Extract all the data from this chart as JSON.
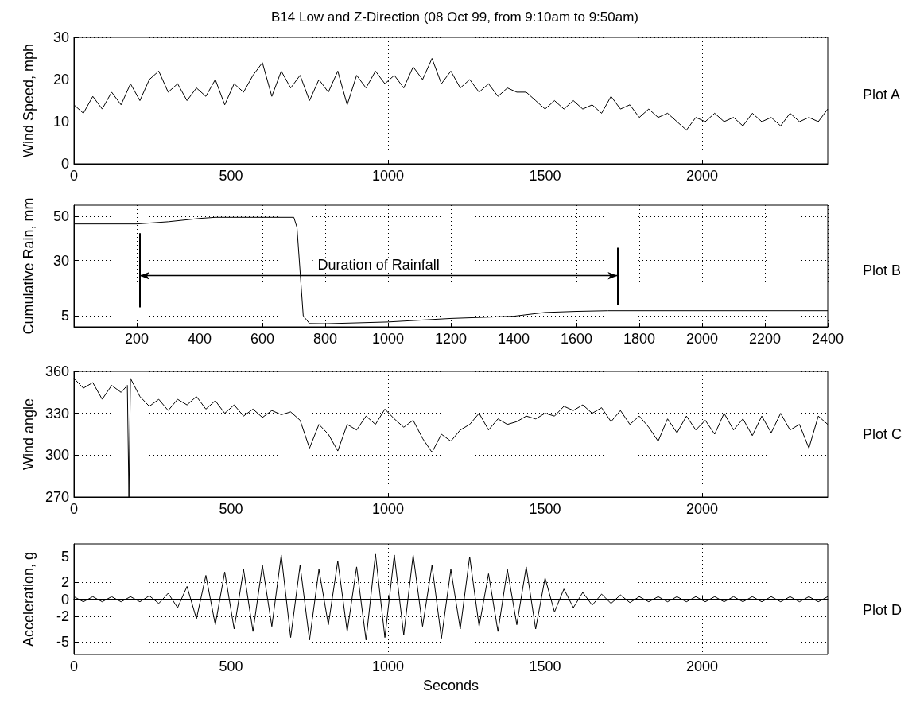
{
  "chart_data": [
    {
      "type": "line",
      "title": "B14 Low and Z-Direction (08 Oct 99, from 9:10am to 9:50am)",
      "annotations": [
        "Plot A"
      ],
      "ylabel": "Wind Speed, mph",
      "xlim": [
        0,
        2400
      ],
      "xticks": [
        0,
        500,
        1000,
        1500,
        2000
      ],
      "ylim": [
        0,
        30
      ],
      "yticks": [
        0,
        10,
        20,
        30
      ],
      "grid": true,
      "x": [
        0,
        30,
        60,
        90,
        120,
        150,
        180,
        210,
        240,
        270,
        300,
        330,
        360,
        390,
        420,
        450,
        480,
        510,
        540,
        570,
        600,
        630,
        660,
        690,
        720,
        750,
        780,
        810,
        840,
        870,
        900,
        930,
        960,
        990,
        1020,
        1050,
        1080,
        1110,
        1140,
        1170,
        1200,
        1230,
        1260,
        1290,
        1320,
        1350,
        1380,
        1410,
        1440,
        1470,
        1500,
        1530,
        1560,
        1590,
        1620,
        1650,
        1680,
        1710,
        1740,
        1770,
        1800,
        1830,
        1860,
        1890,
        1920,
        1950,
        1980,
        2010,
        2040,
        2070,
        2100,
        2130,
        2160,
        2190,
        2220,
        2250,
        2280,
        2310,
        2340,
        2370,
        2400
      ],
      "series": [
        {
          "color": "#000000",
          "values": [
            14,
            12,
            16,
            13,
            17,
            14,
            19,
            15,
            20,
            22,
            17,
            19,
            15,
            18,
            16,
            20,
            14,
            19,
            17,
            21,
            24,
            16,
            22,
            18,
            21,
            15,
            20,
            17,
            22,
            14,
            21,
            18,
            22,
            19,
            21,
            18,
            23,
            20,
            25,
            19,
            22,
            18,
            20,
            17,
            19,
            16,
            18,
            17,
            17,
            15,
            13,
            15,
            13,
            15,
            13,
            14,
            12,
            16,
            13,
            14,
            11,
            13,
            11,
            12,
            10,
            8,
            11,
            10,
            12,
            10,
            11,
            9,
            12,
            10,
            11,
            9,
            12,
            10,
            11,
            10,
            13
          ]
        }
      ]
    },
    {
      "type": "line",
      "annotations": [
        "Plot B",
        "Duration of Rainfall"
      ],
      "ylabel": "Cumulative Rain, mm",
      "xlim": [
        0,
        2400
      ],
      "xticks": [
        200,
        400,
        600,
        800,
        1000,
        1200,
        1400,
        1600,
        1800,
        2000,
        2200,
        2400
      ],
      "ylim": [
        0,
        55
      ],
      "yticks": [
        5,
        30,
        50
      ],
      "grid": true,
      "x": [
        0,
        200,
        300,
        400,
        450,
        700,
        710,
        730,
        750,
        800,
        1000,
        1200,
        1400,
        1500,
        1600,
        1700,
        2400
      ],
      "series": [
        {
          "color": "#000000",
          "values": [
            46.5,
            46.5,
            47.5,
            49,
            49.5,
            49.5,
            45,
            5,
            1.5,
            1.4,
            2.2,
            3.8,
            4.8,
            6.5,
            7,
            7.3,
            7.3
          ]
        }
      ],
      "ref_lines": [
        {
          "axis": "x",
          "value": 210
        },
        {
          "axis": "x",
          "value": 1730
        }
      ]
    },
    {
      "type": "line",
      "annotations": [
        "Plot C"
      ],
      "ylabel": "Wind angle",
      "xlim": [
        0,
        2400
      ],
      "xticks": [
        0,
        500,
        1000,
        1500,
        2000
      ],
      "ylim": [
        270,
        360
      ],
      "yticks": [
        270,
        300,
        330,
        360
      ],
      "grid": true,
      "x": [
        0,
        30,
        60,
        90,
        120,
        150,
        170,
        175,
        180,
        210,
        240,
        270,
        300,
        330,
        360,
        390,
        420,
        450,
        480,
        510,
        540,
        570,
        600,
        630,
        660,
        690,
        720,
        750,
        780,
        810,
        840,
        870,
        900,
        930,
        960,
        990,
        1020,
        1050,
        1080,
        1110,
        1140,
        1170,
        1200,
        1230,
        1260,
        1290,
        1320,
        1350,
        1380,
        1410,
        1440,
        1470,
        1500,
        1530,
        1560,
        1590,
        1620,
        1650,
        1680,
        1710,
        1740,
        1770,
        1800,
        1830,
        1860,
        1890,
        1920,
        1950,
        1980,
        2010,
        2040,
        2070,
        2100,
        2130,
        2160,
        2190,
        2220,
        2250,
        2280,
        2310,
        2340,
        2370,
        2400
      ],
      "series": [
        {
          "color": "#000000",
          "values": [
            355,
            348,
            352,
            340,
            350,
            345,
            350,
            270,
            355,
            342,
            335,
            340,
            332,
            340,
            336,
            342,
            333,
            339,
            330,
            336,
            328,
            333,
            327,
            332,
            329,
            331,
            325,
            305,
            322,
            315,
            303,
            322,
            318,
            328,
            322,
            333,
            326,
            320,
            325,
            312,
            302,
            315,
            310,
            318,
            322,
            330,
            318,
            326,
            322,
            324,
            328,
            326,
            330,
            328,
            335,
            332,
            336,
            330,
            334,
            324,
            332,
            322,
            328,
            320,
            310,
            326,
            316,
            328,
            318,
            325,
            315,
            330,
            318,
            326,
            314,
            328,
            316,
            330,
            318,
            322,
            305,
            328,
            322
          ]
        }
      ]
    },
    {
      "type": "line",
      "annotations": [
        "Plot D"
      ],
      "ylabel": "Acceleration, g",
      "xlabel": "Seconds",
      "xlim": [
        0,
        2400
      ],
      "xticks": [
        0,
        500,
        1000,
        1500,
        2000
      ],
      "ylim": [
        -6.5,
        6.5
      ],
      "yticks": [
        -5,
        -2,
        0,
        2,
        5
      ],
      "grid": true,
      "x": [
        0,
        30,
        60,
        90,
        120,
        150,
        180,
        210,
        240,
        270,
        300,
        330,
        360,
        390,
        420,
        450,
        480,
        510,
        540,
        570,
        600,
        630,
        660,
        690,
        720,
        750,
        780,
        810,
        840,
        870,
        900,
        930,
        960,
        990,
        1020,
        1050,
        1080,
        1110,
        1140,
        1170,
        1200,
        1230,
        1260,
        1290,
        1320,
        1350,
        1380,
        1410,
        1440,
        1470,
        1500,
        1530,
        1560,
        1590,
        1620,
        1650,
        1680,
        1710,
        1740,
        1770,
        1800,
        1830,
        1860,
        1890,
        1920,
        1950,
        1980,
        2010,
        2040,
        2070,
        2100,
        2130,
        2160,
        2190,
        2220,
        2250,
        2280,
        2310,
        2340,
        2370,
        2400
      ],
      "series": [
        {
          "color": "#000000",
          "values": [
            0.3,
            -0.3,
            0.3,
            -0.3,
            0.3,
            -0.3,
            0.3,
            -0.3,
            0.4,
            -0.5,
            0.7,
            -1,
            1.5,
            -2.3,
            2.8,
            -3,
            3.2,
            -3.5,
            3.5,
            -3.8,
            4,
            -3.2,
            5.2,
            -4.5,
            4,
            -4.8,
            3.5,
            -3,
            4.5,
            -3.8,
            3.8,
            -4.8,
            5.3,
            -4.5,
            5.2,
            -4.2,
            5.2,
            -3.2,
            4,
            -4.6,
            3.5,
            -3.5,
            5,
            -3.2,
            3,
            -3.8,
            3.5,
            -3,
            3.8,
            -3.5,
            2.5,
            -1.5,
            1.2,
            -1,
            0.8,
            -0.7,
            0.6,
            -0.5,
            0.5,
            -0.4,
            0.3,
            -0.3,
            0.3,
            -0.3,
            0.3,
            -0.3,
            0.3,
            -0.3,
            0.3,
            -0.3,
            0.3,
            -0.3,
            0.3,
            -0.3,
            0.3,
            -0.3,
            0.3,
            -0.3,
            0.3,
            -0.3,
            0.3
          ]
        }
      ]
    }
  ]
}
